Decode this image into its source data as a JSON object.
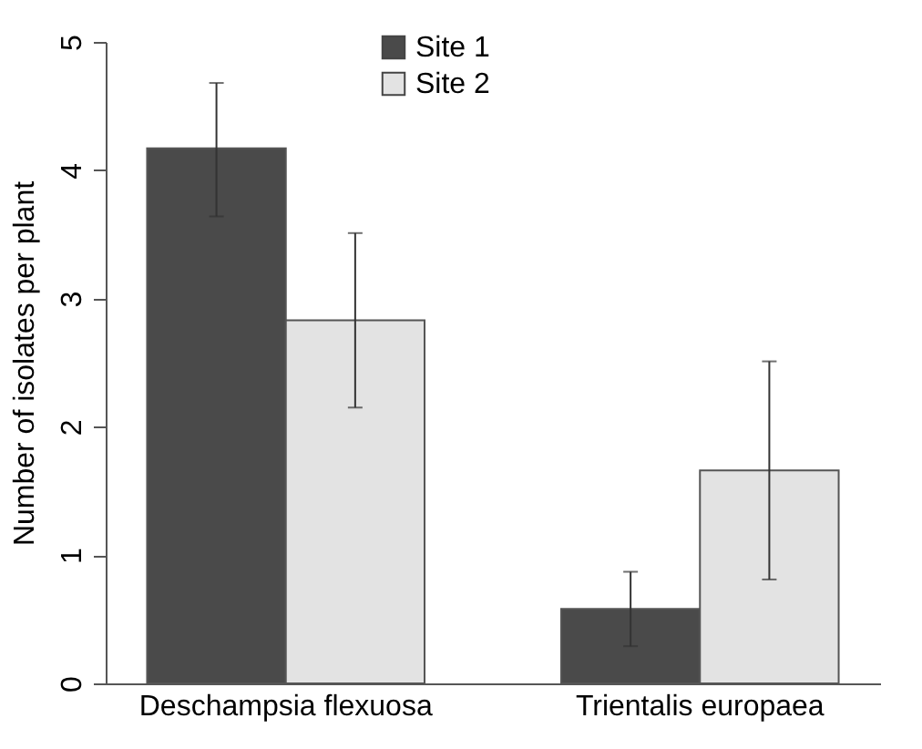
{
  "chart_data": {
    "type": "bar",
    "ylabel": "Number of isolates per plant",
    "categories": [
      "Deschampsia flexuosa",
      "Trientalis europaea"
    ],
    "series": [
      {
        "name": "Site 1",
        "color": "#4a4a4a",
        "values": [
          4.17,
          0.58
        ],
        "errors": [
          [
            3.64,
            4.68
          ],
          [
            0.29,
            0.87
          ]
        ]
      },
      {
        "name": "Site 2",
        "color": "#e3e3e3",
        "values": [
          2.83,
          1.66
        ],
        "errors": [
          [
            2.15,
            3.51
          ],
          [
            0.81,
            2.51
          ]
        ]
      }
    ],
    "ylim": [
      0,
      5
    ],
    "yticks": [
      0,
      1,
      2,
      3,
      4,
      5
    ],
    "grid": false,
    "legend": "top"
  }
}
